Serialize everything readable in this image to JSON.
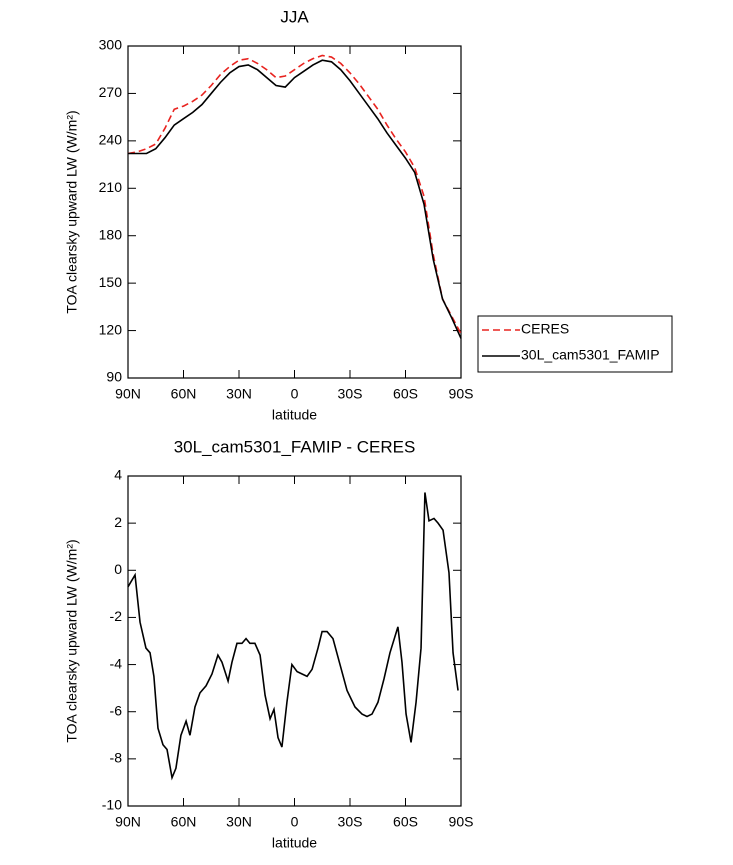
{
  "chart_data": [
    {
      "type": "line",
      "title": "JJA",
      "xlabel": "latitude",
      "ylabel": "TOA clearsky upward LW (W/m²)",
      "x": [
        90,
        85,
        80,
        75,
        70,
        65,
        60,
        55,
        50,
        45,
        40,
        35,
        30,
        25,
        20,
        15,
        10,
        5,
        0,
        -5,
        -10,
        -15,
        -20,
        -25,
        -30,
        -35,
        -40,
        -45,
        -50,
        -55,
        -60,
        -65,
        -70,
        -75,
        -80,
        -85,
        -90
      ],
      "series": [
        {
          "name": "CERES",
          "color": "#e8231f",
          "dash": "dashed",
          "values": [
            232,
            233,
            235,
            238,
            248,
            260,
            262,
            265,
            269,
            275,
            282,
            287,
            291,
            292,
            289,
            285,
            280,
            281,
            285,
            289,
            292,
            294,
            293,
            289,
            283,
            276,
            268,
            260,
            250,
            241,
            233,
            223,
            205,
            168,
            140,
            129,
            118
          ]
        },
        {
          "name": "30L_cam5301_FAMIP",
          "color": "#000000",
          "dash": "solid",
          "values": [
            232,
            232,
            232,
            235,
            242,
            250,
            254,
            258,
            263,
            270,
            277,
            283,
            287,
            288,
            285,
            280,
            275,
            274,
            280,
            284,
            288,
            291,
            290,
            285,
            278,
            270,
            262,
            254,
            245,
            237,
            229,
            220,
            200,
            165,
            140,
            128,
            115
          ]
        }
      ],
      "xlim": [
        90,
        -90
      ],
      "xticks": [
        {
          "value": 90,
          "label": "90N"
        },
        {
          "value": 60,
          "label": "60N"
        },
        {
          "value": 30,
          "label": "30N"
        },
        0,
        {
          "value": -30,
          "label": "30S"
        },
        {
          "value": -60,
          "label": "60S"
        },
        {
          "value": -90,
          "label": "90S"
        }
      ],
      "ylim": [
        90,
        300
      ],
      "yticks": [
        90,
        120,
        150,
        180,
        210,
        240,
        270,
        300
      ],
      "legend": "right"
    },
    {
      "type": "line",
      "title": "30L_cam5301_FAMIP - CERES",
      "xlabel": "latitude",
      "ylabel": "TOA clearsky upward LW (W/m²)",
      "x": [
        90,
        86.2,
        83.5,
        80.3,
        78.1,
        76,
        73.8,
        71.1,
        68.9,
        66.2,
        64.1,
        61.4,
        58.6,
        56.5,
        53.8,
        51.1,
        47.8,
        44.6,
        41.4,
        39.2,
        35.9,
        33.8,
        31.1,
        28.4,
        26.2,
        24.1,
        21.4,
        18.6,
        15.9,
        13.2,
        11.1,
        8.9,
        6.8,
        4.1,
        1.4,
        -1.4,
        -4.1,
        -6.8,
        -9.5,
        -12.7,
        -14.9,
        -17.6,
        -20.8,
        -24.6,
        -28.4,
        -32.7,
        -36.5,
        -39.2,
        -41.9,
        -45.1,
        -48.4,
        -51.6,
        -55.9,
        -58.1,
        -60.3,
        -63,
        -65.7,
        -68.4,
        -70.5,
        -72.7,
        -75.4,
        -77.6,
        -80.3,
        -83.5,
        -85.7,
        -88.4
      ],
      "values": [
        -0.7,
        -0.2,
        -2.2,
        -3.3,
        -3.5,
        -4.5,
        -6.7,
        -7.4,
        -7.6,
        -8.8,
        -8.4,
        -7.0,
        -6.4,
        -7.0,
        -5.8,
        -5.2,
        -4.9,
        -4.4,
        -3.6,
        -3.9,
        -4.7,
        -3.9,
        -3.1,
        -3.1,
        -2.9,
        -3.1,
        -3.1,
        -3.6,
        -5.3,
        -6.3,
        -5.9,
        -7.1,
        -7.5,
        -5.6,
        -4.0,
        -4.3,
        -4.4,
        -4.5,
        -4.2,
        -3.3,
        -2.6,
        -2.6,
        -2.9,
        -4.0,
        -5.1,
        -5.8,
        -6.1,
        -6.2,
        -6.1,
        -5.6,
        -4.6,
        -3.5,
        -2.4,
        -3.9,
        -6.1,
        -7.3,
        -5.6,
        -3.3,
        3.3,
        2.1,
        2.2,
        2.0,
        1.7,
        -0.1,
        -3.5,
        -5.1
      ],
      "color": "#000000",
      "xlim": [
        90,
        -90
      ],
      "xticks": [
        {
          "value": 90,
          "label": "90N"
        },
        {
          "value": 60,
          "label": "60N"
        },
        {
          "value": 30,
          "label": "30N"
        },
        0,
        {
          "value": -30,
          "label": "30S"
        },
        {
          "value": -60,
          "label": "60S"
        },
        {
          "value": -90,
          "label": "90S"
        }
      ],
      "ylim": [
        -10,
        4
      ],
      "yticks": [
        -10,
        -8,
        -6,
        -4,
        -2,
        0,
        2,
        4
      ]
    }
  ]
}
